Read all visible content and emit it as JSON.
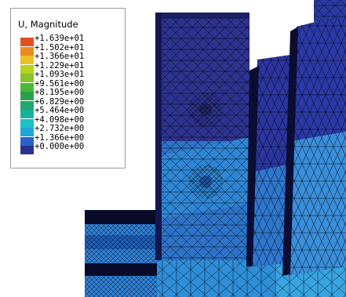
{
  "legend": {
    "title": "U, Magnitude",
    "colors": [
      "#e3501f",
      "#ec8a22",
      "#e9c323",
      "#b6d21f",
      "#86c32a",
      "#4ab93a",
      "#2aa04d",
      "#1fa86b",
      "#17b29b",
      "#1cc0c6",
      "#1da7d8",
      "#2a62c9",
      "#2a3190"
    ],
    "labels": [
      "+1.639e+01",
      "+1.502e+01",
      "+1.366e+01",
      "+1.229e+01",
      "+1.093e+01",
      "+9.561e+00",
      "+8.195e+00",
      "+6.829e+00",
      "+5.464e+00",
      "+4.098e+00",
      "+2.732e+00",
      "+1.366e+00",
      "+0.000e+00"
    ]
  },
  "viewport": {
    "mesh_colors": {
      "dark_blue": "#2a2f9e",
      "mid_blue": "#2f66c8",
      "light_blue": "#2d8ed8",
      "cyan_blue": "#38a4e0",
      "edge": "#000000"
    }
  }
}
